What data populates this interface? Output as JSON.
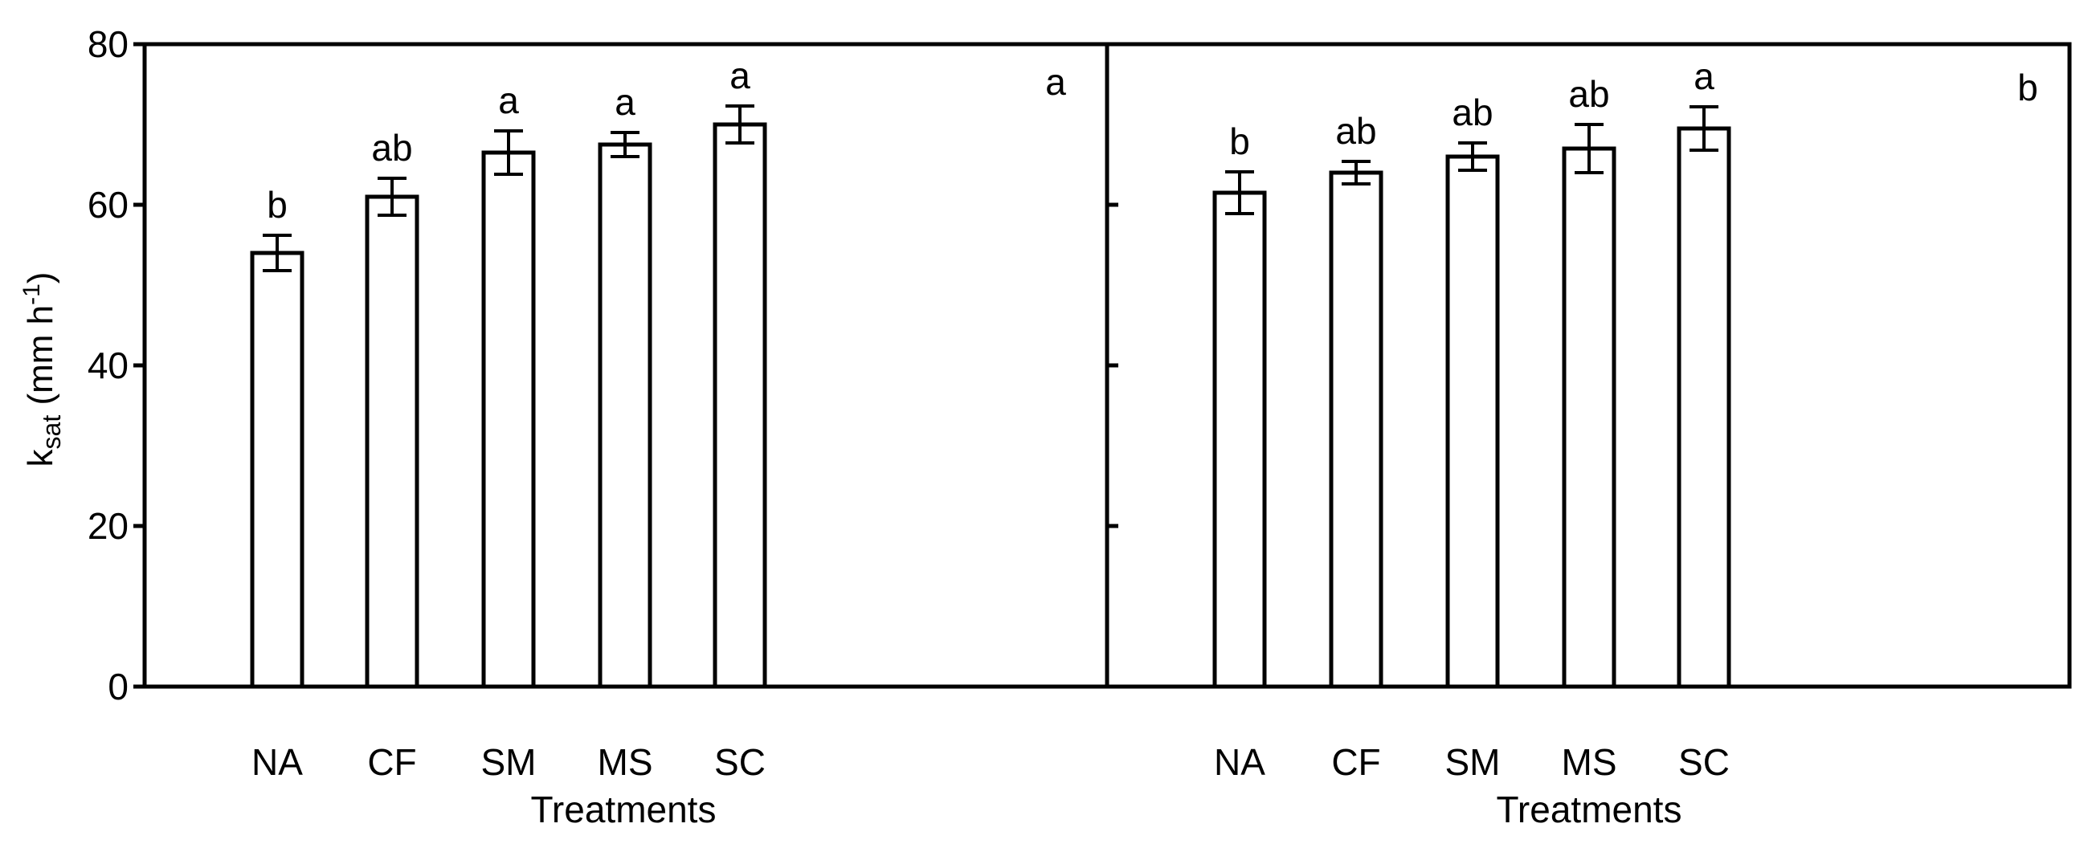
{
  "chart_data": [
    {
      "type": "bar",
      "categories": [
        "NA",
        "CF",
        "SM",
        "MS",
        "SC"
      ],
      "series": [
        {
          "values": [
            54.0,
            61.0,
            66.5,
            67.5,
            70.0
          ],
          "errors": [
            2.2,
            2.3,
            2.7,
            1.5,
            2.3
          ],
          "letters": [
            "b",
            "ab",
            "a",
            "a",
            "a"
          ]
        }
      ],
      "panel_letter": "a",
      "xlabel": "Treatments",
      "ylabel_main": "k",
      "ylabel_sub": "sat",
      "ylabel_unit_open": " (mm h",
      "ylabel_unit_sup": "-1",
      "ylabel_unit_close": ")",
      "ylim": [
        0,
        80
      ],
      "yticks": [
        "0",
        "20",
        "40",
        "60",
        "80"
      ],
      "grid": false,
      "bar_fill": "#ffffff",
      "bar_stroke": "#000000"
    },
    {
      "type": "bar",
      "categories": [
        "NA",
        "CF",
        "SM",
        "MS",
        "SC"
      ],
      "series": [
        {
          "values": [
            61.5,
            64.0,
            66.0,
            67.0,
            69.5
          ],
          "errors": [
            2.6,
            1.4,
            1.7,
            3.0,
            2.7
          ],
          "letters": [
            "b",
            "ab",
            "ab",
            "ab",
            "a"
          ]
        }
      ],
      "panel_letter": "b",
      "xlabel": "Treatments",
      "ylim": [
        0,
        80
      ],
      "grid": false,
      "bar_fill": "#ffffff",
      "bar_stroke": "#000000"
    }
  ]
}
